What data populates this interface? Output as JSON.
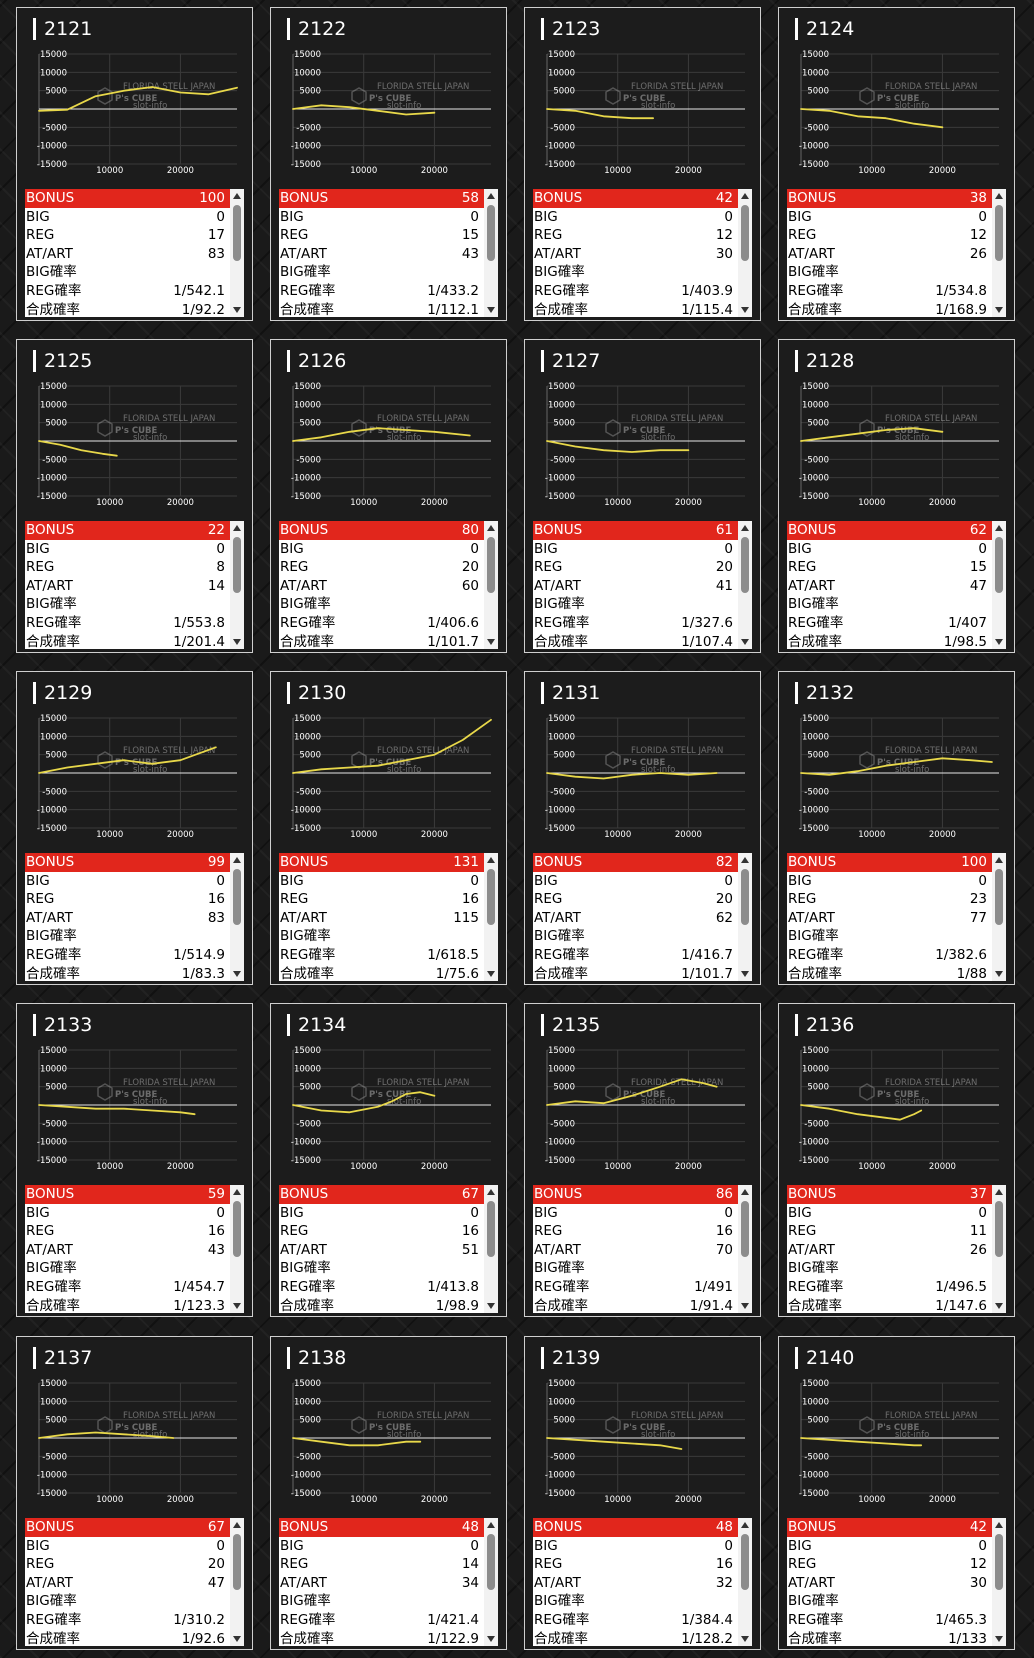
{
  "labels": {
    "bonus": "BONUS",
    "big": "BIG",
    "reg": "REG",
    "at": "AT/ART",
    "big_prob": "BIG確率",
    "reg_prob": "REG確率",
    "total_prob": "合成確率"
  },
  "watermark": {
    "logo": "P's CUBE",
    "tag": "FLORIDA STELL JAPAN",
    "sub": "slot-info"
  },
  "colors": {
    "bonus_bar": "#e1261c",
    "line": "#e8d84a",
    "card_border": "#cfcfcf"
  },
  "machines": [
    {
      "id": "2121",
      "bonus": "100",
      "big": "0",
      "reg": "17",
      "at": "83",
      "big_prob": "",
      "reg_prob": "1/542.1",
      "total_prob": "1/92.2",
      "chart_data": {
        "type": "line",
        "x": [
          0,
          4000,
          8000,
          12000,
          16000,
          20000,
          24000,
          28000
        ],
        "y": [
          -500,
          -200,
          3500,
          5000,
          6000,
          4500,
          4000,
          5800
        ],
        "xlim": [
          0,
          28000
        ],
        "ylim": [
          -15000,
          15000
        ],
        "yticks": [
          15000,
          10000,
          5000,
          -5000,
          -10000,
          -15000
        ],
        "xticks": [
          10000,
          20000
        ]
      }
    },
    {
      "id": "2122",
      "bonus": "58",
      "big": "0",
      "reg": "15",
      "at": "43",
      "big_prob": "",
      "reg_prob": "1/433.2",
      "total_prob": "1/112.1",
      "chart_data": {
        "type": "line",
        "x": [
          0,
          4000,
          8000,
          12000,
          16000,
          20000
        ],
        "y": [
          0,
          1000,
          500,
          -500,
          -1500,
          -1000
        ],
        "xlim": [
          0,
          28000
        ],
        "ylim": [
          -15000,
          15000
        ],
        "yticks": [
          15000,
          10000,
          5000,
          -5000,
          -10000,
          -15000
        ],
        "xticks": [
          10000,
          20000
        ]
      }
    },
    {
      "id": "2123",
      "bonus": "42",
      "big": "0",
      "reg": "12",
      "at": "30",
      "big_prob": "",
      "reg_prob": "1/403.9",
      "total_prob": "1/115.4",
      "chart_data": {
        "type": "line",
        "x": [
          0,
          4000,
          8000,
          12000,
          15000
        ],
        "y": [
          0,
          -500,
          -2000,
          -2500,
          -2500
        ],
        "xlim": [
          0,
          28000
        ],
        "ylim": [
          -15000,
          15000
        ],
        "yticks": [
          15000,
          10000,
          5000,
          -5000,
          -10000,
          -15000
        ],
        "xticks": [
          10000,
          20000
        ]
      }
    },
    {
      "id": "2124",
      "bonus": "38",
      "big": "0",
      "reg": "12",
      "at": "26",
      "big_prob": "",
      "reg_prob": "1/534.8",
      "total_prob": "1/168.9",
      "chart_data": {
        "type": "line",
        "x": [
          0,
          4000,
          8000,
          12000,
          16000,
          20000
        ],
        "y": [
          0,
          -500,
          -2000,
          -2500,
          -4000,
          -5000
        ],
        "xlim": [
          0,
          28000
        ],
        "ylim": [
          -15000,
          15000
        ],
        "yticks": [
          15000,
          10000,
          5000,
          -5000,
          -10000,
          -15000
        ],
        "xticks": [
          10000,
          20000
        ]
      }
    },
    {
      "id": "2125",
      "bonus": "22",
      "big": "0",
      "reg": "8",
      "at": "14",
      "big_prob": "",
      "reg_prob": "1/553.8",
      "total_prob": "1/201.4",
      "chart_data": {
        "type": "line",
        "x": [
          0,
          3000,
          6000,
          9000,
          11000
        ],
        "y": [
          0,
          -1000,
          -2500,
          -3500,
          -4000
        ],
        "xlim": [
          0,
          28000
        ],
        "ylim": [
          -15000,
          15000
        ],
        "yticks": [
          15000,
          10000,
          5000,
          -5000,
          -10000,
          -15000
        ],
        "xticks": [
          10000,
          20000
        ]
      }
    },
    {
      "id": "2126",
      "bonus": "80",
      "big": "0",
      "reg": "20",
      "at": "60",
      "big_prob": "",
      "reg_prob": "1/406.6",
      "total_prob": "1/101.7",
      "chart_data": {
        "type": "line",
        "x": [
          0,
          4000,
          8000,
          12000,
          16000,
          20000,
          25000
        ],
        "y": [
          0,
          1000,
          2500,
          3500,
          3000,
          2500,
          1500
        ],
        "xlim": [
          0,
          28000
        ],
        "ylim": [
          -15000,
          15000
        ],
        "yticks": [
          15000,
          10000,
          5000,
          -5000,
          -10000,
          -15000
        ],
        "xticks": [
          10000,
          20000
        ]
      }
    },
    {
      "id": "2127",
      "bonus": "61",
      "big": "0",
      "reg": "20",
      "at": "41",
      "big_prob": "",
      "reg_prob": "1/327.6",
      "total_prob": "1/107.4",
      "chart_data": {
        "type": "line",
        "x": [
          0,
          4000,
          8000,
          12000,
          16000,
          20000
        ],
        "y": [
          0,
          -1500,
          -2500,
          -3000,
          -2500,
          -2500
        ],
        "xlim": [
          0,
          28000
        ],
        "ylim": [
          -15000,
          15000
        ],
        "yticks": [
          15000,
          10000,
          5000,
          -5000,
          -10000,
          -15000
        ],
        "xticks": [
          10000,
          20000
        ]
      }
    },
    {
      "id": "2128",
      "bonus": "62",
      "big": "0",
      "reg": "15",
      "at": "47",
      "big_prob": "",
      "reg_prob": "1/407",
      "total_prob": "1/98.5",
      "chart_data": {
        "type": "line",
        "x": [
          0,
          4000,
          8000,
          12000,
          16000,
          20000
        ],
        "y": [
          0,
          1000,
          2000,
          3000,
          3500,
          2500
        ],
        "xlim": [
          0,
          28000
        ],
        "ylim": [
          -15000,
          15000
        ],
        "yticks": [
          15000,
          10000,
          5000,
          -5000,
          -10000,
          -15000
        ],
        "xticks": [
          10000,
          20000
        ]
      }
    },
    {
      "id": "2129",
      "bonus": "99",
      "big": "0",
      "reg": "16",
      "at": "83",
      "big_prob": "",
      "reg_prob": "1/514.9",
      "total_prob": "1/83.3",
      "chart_data": {
        "type": "line",
        "x": [
          0,
          4000,
          8000,
          12000,
          16000,
          20000,
          25000
        ],
        "y": [
          0,
          1500,
          2500,
          3500,
          2500,
          3500,
          7000
        ],
        "xlim": [
          0,
          28000
        ],
        "ylim": [
          -15000,
          15000
        ],
        "yticks": [
          15000,
          10000,
          5000,
          -5000,
          -10000,
          -15000
        ],
        "xticks": [
          10000,
          20000
        ]
      }
    },
    {
      "id": "2130",
      "bonus": "131",
      "big": "0",
      "reg": "16",
      "at": "115",
      "big_prob": "",
      "reg_prob": "1/618.5",
      "total_prob": "1/75.6",
      "chart_data": {
        "type": "line",
        "x": [
          0,
          4000,
          8000,
          12000,
          16000,
          20000,
          24000,
          28000
        ],
        "y": [
          0,
          1000,
          1500,
          2000,
          3500,
          5000,
          9000,
          14500
        ],
        "xlim": [
          0,
          28000
        ],
        "ylim": [
          -15000,
          15000
        ],
        "yticks": [
          15000,
          10000,
          5000,
          -5000,
          -10000,
          -15000
        ],
        "xticks": [
          10000,
          20000
        ]
      }
    },
    {
      "id": "2131",
      "bonus": "82",
      "big": "0",
      "reg": "20",
      "at": "62",
      "big_prob": "",
      "reg_prob": "1/416.7",
      "total_prob": "1/101.7",
      "chart_data": {
        "type": "line",
        "x": [
          0,
          4000,
          8000,
          12000,
          16000,
          20000,
          24000
        ],
        "y": [
          0,
          -1000,
          -1500,
          -500,
          0,
          -500,
          0
        ],
        "xlim": [
          0,
          28000
        ],
        "ylim": [
          -15000,
          15000
        ],
        "yticks": [
          15000,
          10000,
          5000,
          -5000,
          -10000,
          -15000
        ],
        "xticks": [
          10000,
          20000
        ]
      }
    },
    {
      "id": "2132",
      "bonus": "100",
      "big": "0",
      "reg": "23",
      "at": "77",
      "big_prob": "",
      "reg_prob": "1/382.6",
      "total_prob": "1/88",
      "chart_data": {
        "type": "line",
        "x": [
          0,
          4000,
          8000,
          12000,
          16000,
          20000,
          24000,
          27000
        ],
        "y": [
          0,
          -500,
          500,
          2000,
          3000,
          4000,
          3500,
          3000
        ],
        "xlim": [
          0,
          28000
        ],
        "ylim": [
          -15000,
          15000
        ],
        "yticks": [
          15000,
          10000,
          5000,
          -5000,
          -10000,
          -15000
        ],
        "xticks": [
          10000,
          20000
        ]
      }
    },
    {
      "id": "2133",
      "bonus": "59",
      "big": "0",
      "reg": "16",
      "at": "43",
      "big_prob": "",
      "reg_prob": "1/454.7",
      "total_prob": "1/123.3",
      "chart_data": {
        "type": "line",
        "x": [
          0,
          4000,
          8000,
          12000,
          16000,
          20000,
          22000
        ],
        "y": [
          0,
          -500,
          -1000,
          -1000,
          -1500,
          -2000,
          -2500
        ],
        "xlim": [
          0,
          28000
        ],
        "ylim": [
          -15000,
          15000
        ],
        "yticks": [
          15000,
          10000,
          5000,
          -5000,
          -10000,
          -15000
        ],
        "xticks": [
          10000,
          20000
        ]
      }
    },
    {
      "id": "2134",
      "bonus": "67",
      "big": "0",
      "reg": "16",
      "at": "51",
      "big_prob": "",
      "reg_prob": "1/413.8",
      "total_prob": "1/98.9",
      "chart_data": {
        "type": "line",
        "x": [
          0,
          4000,
          8000,
          12000,
          14000,
          16000,
          18000,
          20000
        ],
        "y": [
          0,
          -1500,
          -2000,
          -500,
          1000,
          3000,
          3500,
          2500
        ],
        "xlim": [
          0,
          28000
        ],
        "ylim": [
          -15000,
          15000
        ],
        "yticks": [
          15000,
          10000,
          5000,
          -5000,
          -10000,
          -15000
        ],
        "xticks": [
          10000,
          20000
        ]
      }
    },
    {
      "id": "2135",
      "bonus": "86",
      "big": "0",
      "reg": "16",
      "at": "70",
      "big_prob": "",
      "reg_prob": "1/491",
      "total_prob": "1/91.4",
      "chart_data": {
        "type": "line",
        "x": [
          0,
          4000,
          8000,
          12000,
          16000,
          19000,
          22000,
          24000
        ],
        "y": [
          0,
          1000,
          500,
          2500,
          5000,
          7000,
          6000,
          5000
        ],
        "xlim": [
          0,
          28000
        ],
        "ylim": [
          -15000,
          15000
        ],
        "yticks": [
          15000,
          10000,
          5000,
          -5000,
          -10000,
          -15000
        ],
        "xticks": [
          10000,
          20000
        ]
      }
    },
    {
      "id": "2136",
      "bonus": "37",
      "big": "0",
      "reg": "11",
      "at": "26",
      "big_prob": "",
      "reg_prob": "1/496.5",
      "total_prob": "1/147.6",
      "chart_data": {
        "type": "line",
        "x": [
          0,
          4000,
          8000,
          12000,
          14000,
          16000,
          17000
        ],
        "y": [
          0,
          -1000,
          -2500,
          -3500,
          -4000,
          -2500,
          -1500
        ],
        "xlim": [
          0,
          28000
        ],
        "ylim": [
          -15000,
          15000
        ],
        "yticks": [
          15000,
          10000,
          5000,
          -5000,
          -10000,
          -15000
        ],
        "xticks": [
          10000,
          20000
        ]
      }
    },
    {
      "id": "2137",
      "bonus": "67",
      "big": "0",
      "reg": "20",
      "at": "47",
      "big_prob": "",
      "reg_prob": "1/310.2",
      "total_prob": "1/92.6",
      "chart_data": {
        "type": "line",
        "x": [
          0,
          4000,
          8000,
          12000,
          16000,
          19000
        ],
        "y": [
          0,
          1000,
          1500,
          1000,
          500,
          0
        ],
        "xlim": [
          0,
          28000
        ],
        "ylim": [
          -15000,
          15000
        ],
        "yticks": [
          15000,
          10000,
          5000,
          -5000,
          -10000,
          -15000
        ],
        "xticks": [
          10000,
          20000
        ]
      }
    },
    {
      "id": "2138",
      "bonus": "48",
      "big": "0",
      "reg": "14",
      "at": "34",
      "big_prob": "",
      "reg_prob": "1/421.4",
      "total_prob": "1/122.9",
      "chart_data": {
        "type": "line",
        "x": [
          0,
          4000,
          8000,
          12000,
          16000,
          18000
        ],
        "y": [
          0,
          -1000,
          -2000,
          -2000,
          -1000,
          -1000
        ],
        "xlim": [
          0,
          28000
        ],
        "ylim": [
          -15000,
          15000
        ],
        "yticks": [
          15000,
          10000,
          5000,
          -5000,
          -10000,
          -15000
        ],
        "xticks": [
          10000,
          20000
        ]
      }
    },
    {
      "id": "2139",
      "bonus": "48",
      "big": "0",
      "reg": "16",
      "at": "32",
      "big_prob": "",
      "reg_prob": "1/384.4",
      "total_prob": "1/128.2",
      "chart_data": {
        "type": "line",
        "x": [
          0,
          4000,
          8000,
          12000,
          16000,
          19000
        ],
        "y": [
          0,
          -500,
          -1000,
          -1500,
          -2000,
          -3000
        ],
        "xlim": [
          0,
          28000
        ],
        "ylim": [
          -15000,
          15000
        ],
        "yticks": [
          15000,
          10000,
          5000,
          -5000,
          -10000,
          -15000
        ],
        "xticks": [
          10000,
          20000
        ]
      }
    },
    {
      "id": "2140",
      "bonus": "42",
      "big": "0",
      "reg": "12",
      "at": "30",
      "big_prob": "",
      "reg_prob": "1/465.3",
      "total_prob": "1/133",
      "chart_data": {
        "type": "line",
        "x": [
          0,
          4000,
          8000,
          12000,
          16000,
          17000
        ],
        "y": [
          0,
          -500,
          -1000,
          -1500,
          -2000,
          -2000
        ],
        "xlim": [
          0,
          28000
        ],
        "ylim": [
          -15000,
          15000
        ],
        "yticks": [
          15000,
          10000,
          5000,
          -5000,
          -10000,
          -15000
        ],
        "xticks": [
          10000,
          20000
        ]
      }
    }
  ]
}
